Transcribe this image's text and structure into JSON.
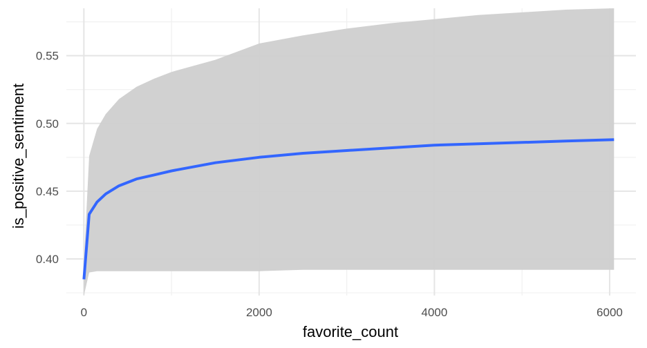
{
  "chart_data": {
    "type": "line",
    "title": "",
    "xlabel": "favorite_count",
    "ylabel": "is_positive_sentiment",
    "xlim": [
      -200,
      6300
    ],
    "ylim": [
      0.373,
      0.585
    ],
    "x_ticks": [
      0,
      2000,
      4000,
      6000
    ],
    "x_tick_labels": [
      "0",
      "2000",
      "4000",
      "6000"
    ],
    "y_ticks": [
      0.4,
      0.45,
      0.5,
      0.55
    ],
    "y_tick_labels": [
      "0.40",
      "0.45",
      "0.50",
      "0.55"
    ],
    "grid": true,
    "legend": "none",
    "colors": {
      "line": "#3366FF",
      "ribbon": "#CFCFCF",
      "grid_major": "#E5E5E5",
      "grid_minor": "#F0F0F0",
      "tick_text": "#4D4D4D"
    },
    "series": [
      {
        "x": [
          0,
          60,
          150,
          250,
          400,
          600,
          800,
          1000,
          1500,
          2000,
          2500,
          3000,
          3500,
          4000,
          4500,
          5000,
          5500,
          6050
        ],
        "y": [
          0.385,
          0.433,
          0.442,
          0.448,
          0.454,
          0.459,
          0.462,
          0.465,
          0.471,
          0.475,
          0.478,
          0.48,
          0.482,
          0.484,
          0.485,
          0.486,
          0.487,
          0.488
        ],
        "ymin": [
          0.373,
          0.39,
          0.391,
          0.391,
          0.391,
          0.391,
          0.391,
          0.391,
          0.391,
          0.391,
          0.392,
          0.392,
          0.392,
          0.392,
          0.392,
          0.392,
          0.392,
          0.392
        ],
        "ymax": [
          0.398,
          0.476,
          0.496,
          0.507,
          0.518,
          0.527,
          0.533,
          0.538,
          0.547,
          0.559,
          0.565,
          0.57,
          0.574,
          0.577,
          0.58,
          0.582,
          0.584,
          0.585
        ]
      }
    ]
  }
}
